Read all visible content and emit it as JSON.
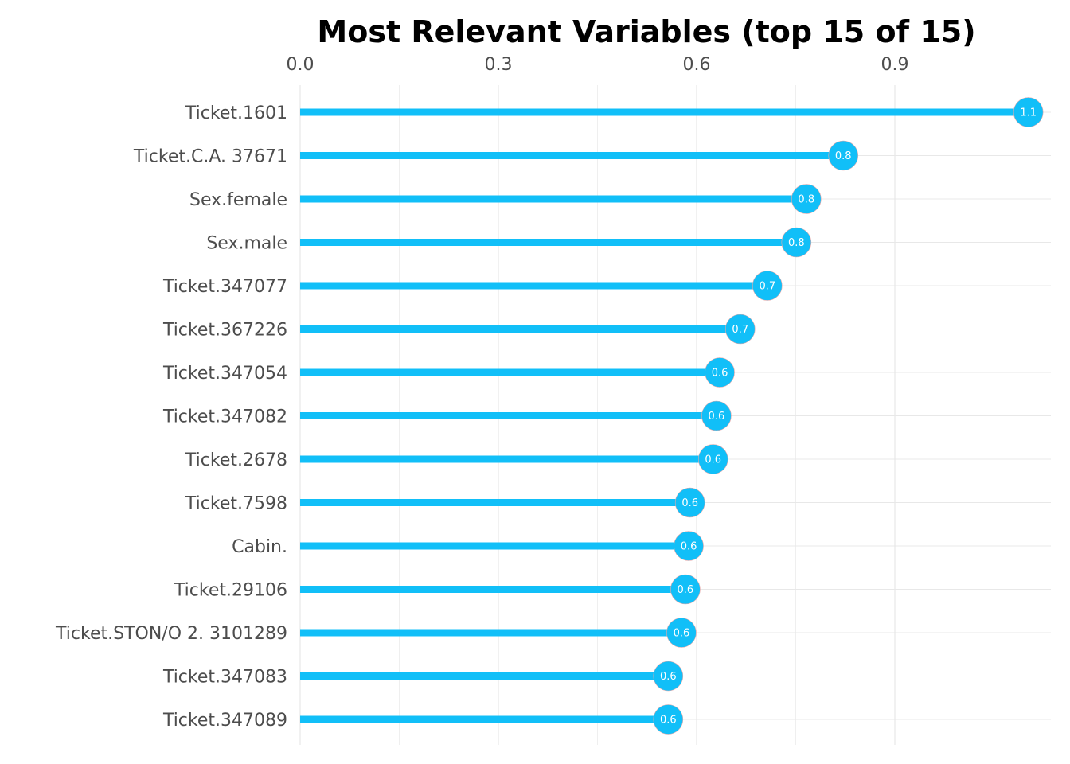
{
  "chart_data": {
    "type": "lollipop",
    "title": "Most Relevant Variables (top 15 of 15)",
    "xlabel": "",
    "ylabel": "",
    "xlim": [
      0,
      1.135
    ],
    "x_ticks": [
      0.0,
      0.3,
      0.6,
      0.9
    ],
    "x_tick_labels": [
      "0.0",
      "0.3",
      "0.6",
      "0.9"
    ],
    "x_axis_position": "top",
    "grid": true,
    "color": "#11BFF8",
    "categories": [
      "Ticket.1601",
      "Ticket.C.A. 37671",
      "Sex.female",
      "Sex.male",
      "Ticket.347077",
      "Ticket.367226",
      "Ticket.347054",
      "Ticket.347082",
      "Ticket.2678",
      "Ticket.7598",
      "Cabin.",
      "Ticket.29106",
      "Ticket.STON/O 2. 3101289",
      "Ticket.347083",
      "Ticket.347089"
    ],
    "values": [
      1.102,
      0.822,
      0.766,
      0.751,
      0.707,
      0.666,
      0.635,
      0.63,
      0.625,
      0.59,
      0.588,
      0.583,
      0.577,
      0.557,
      0.557
    ],
    "data_labels": [
      "1.1",
      "0.8",
      "0.8",
      "0.8",
      "0.7",
      "0.7",
      "0.6",
      "0.6",
      "0.6",
      "0.6",
      "0.6",
      "0.6",
      "0.6",
      "0.6",
      "0.6"
    ]
  }
}
